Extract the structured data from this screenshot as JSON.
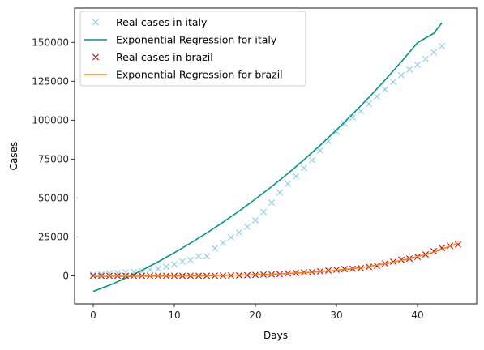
{
  "chart_data": {
    "type": "scatter",
    "xlabel": "Days",
    "ylabel": "Cases",
    "xlim": [
      -2.3,
      47.3
    ],
    "ylim": [
      -18000,
      172000
    ],
    "xticks": [
      0,
      10,
      20,
      30,
      40
    ],
    "yticks": [
      0,
      25000,
      50000,
      75000,
      100000,
      125000,
      150000
    ],
    "xtick_labels": [
      "0",
      "10",
      "20",
      "30",
      "40"
    ],
    "ytick_labels": [
      "0",
      "25000",
      "50000",
      "75000",
      "100000",
      "125000",
      "150000"
    ],
    "grid": false,
    "legend_position": "top-left",
    "series": [
      {
        "name": "Real cases in italy",
        "kind": "markers",
        "marker": "x",
        "color": "#87ceeb",
        "x": [
          0,
          1,
          2,
          3,
          4,
          5,
          6,
          7,
          8,
          9,
          10,
          11,
          12,
          13,
          14,
          15,
          16,
          17,
          18,
          19,
          20,
          21,
          22,
          23,
          24,
          25,
          26,
          27,
          28,
          29,
          30,
          31,
          32,
          33,
          34,
          35,
          36,
          37,
          38,
          39,
          40,
          41,
          42,
          43
        ],
        "y": [
          800,
          1000,
          1500,
          1800,
          2200,
          2500,
          3000,
          3900,
          4600,
          5900,
          7400,
          9200,
          10100,
          12500,
          12500,
          17700,
          21200,
          24700,
          27900,
          31500,
          35700,
          41000,
          47000,
          53600,
          59100,
          63900,
          69200,
          74400,
          80600,
          86500,
          92500,
          97700,
          101700,
          105800,
          110600,
          115200,
          119800,
          124600,
          128900,
          132500,
          135600,
          139400,
          143600,
          147600
        ]
      },
      {
        "name": "Exponential Regression for italy",
        "kind": "line",
        "color": "#009688",
        "x": [
          0,
          2,
          4,
          6,
          8,
          10,
          12,
          14,
          16,
          18,
          20,
          22,
          24,
          26,
          28,
          30,
          32,
          34,
          36,
          38,
          40,
          42,
          43
        ],
        "y": [
          -10000,
          -6000,
          -1500,
          3500,
          9000,
          14800,
          21000,
          27500,
          34400,
          41600,
          49300,
          57300,
          65700,
          74600,
          83900,
          93700,
          103900,
          114600,
          125800,
          137500,
          149800,
          155800,
          162500
        ]
      },
      {
        "name": "Real cases in brazil",
        "kind": "markers",
        "marker": "x",
        "color": "#cc0000",
        "x": [
          0,
          1,
          2,
          3,
          4,
          5,
          6,
          7,
          8,
          9,
          10,
          11,
          12,
          13,
          14,
          15,
          16,
          17,
          18,
          19,
          20,
          21,
          22,
          23,
          24,
          25,
          26,
          27,
          28,
          29,
          30,
          31,
          32,
          33,
          34,
          35,
          36,
          37,
          38,
          39,
          40,
          41,
          42,
          43,
          44,
          45
        ],
        "y": [
          0,
          0,
          0,
          0,
          0,
          0,
          0,
          0,
          0,
          0,
          0,
          0,
          0,
          0,
          0,
          100,
          100,
          200,
          300,
          400,
          600,
          800,
          900,
          1100,
          1500,
          1900,
          2200,
          2400,
          2900,
          3400,
          3900,
          4300,
          4600,
          5000,
          5800,
          6500,
          7900,
          9100,
          10300,
          11100,
          12200,
          13700,
          15800,
          17900,
          19300,
          20100
        ]
      },
      {
        "name": "Exponential Regression for brazil",
        "kind": "line",
        "color": "#ff7f0e",
        "x": [
          0,
          3,
          6,
          9,
          12,
          15,
          18,
          21,
          24,
          27,
          30,
          33,
          36,
          39,
          42,
          45
        ],
        "y": [
          -400,
          -350,
          -250,
          -100,
          0,
          200,
          500,
          900,
          1500,
          2300,
          3500,
          5200,
          7800,
          11000,
          15200,
          21000
        ]
      }
    ]
  }
}
